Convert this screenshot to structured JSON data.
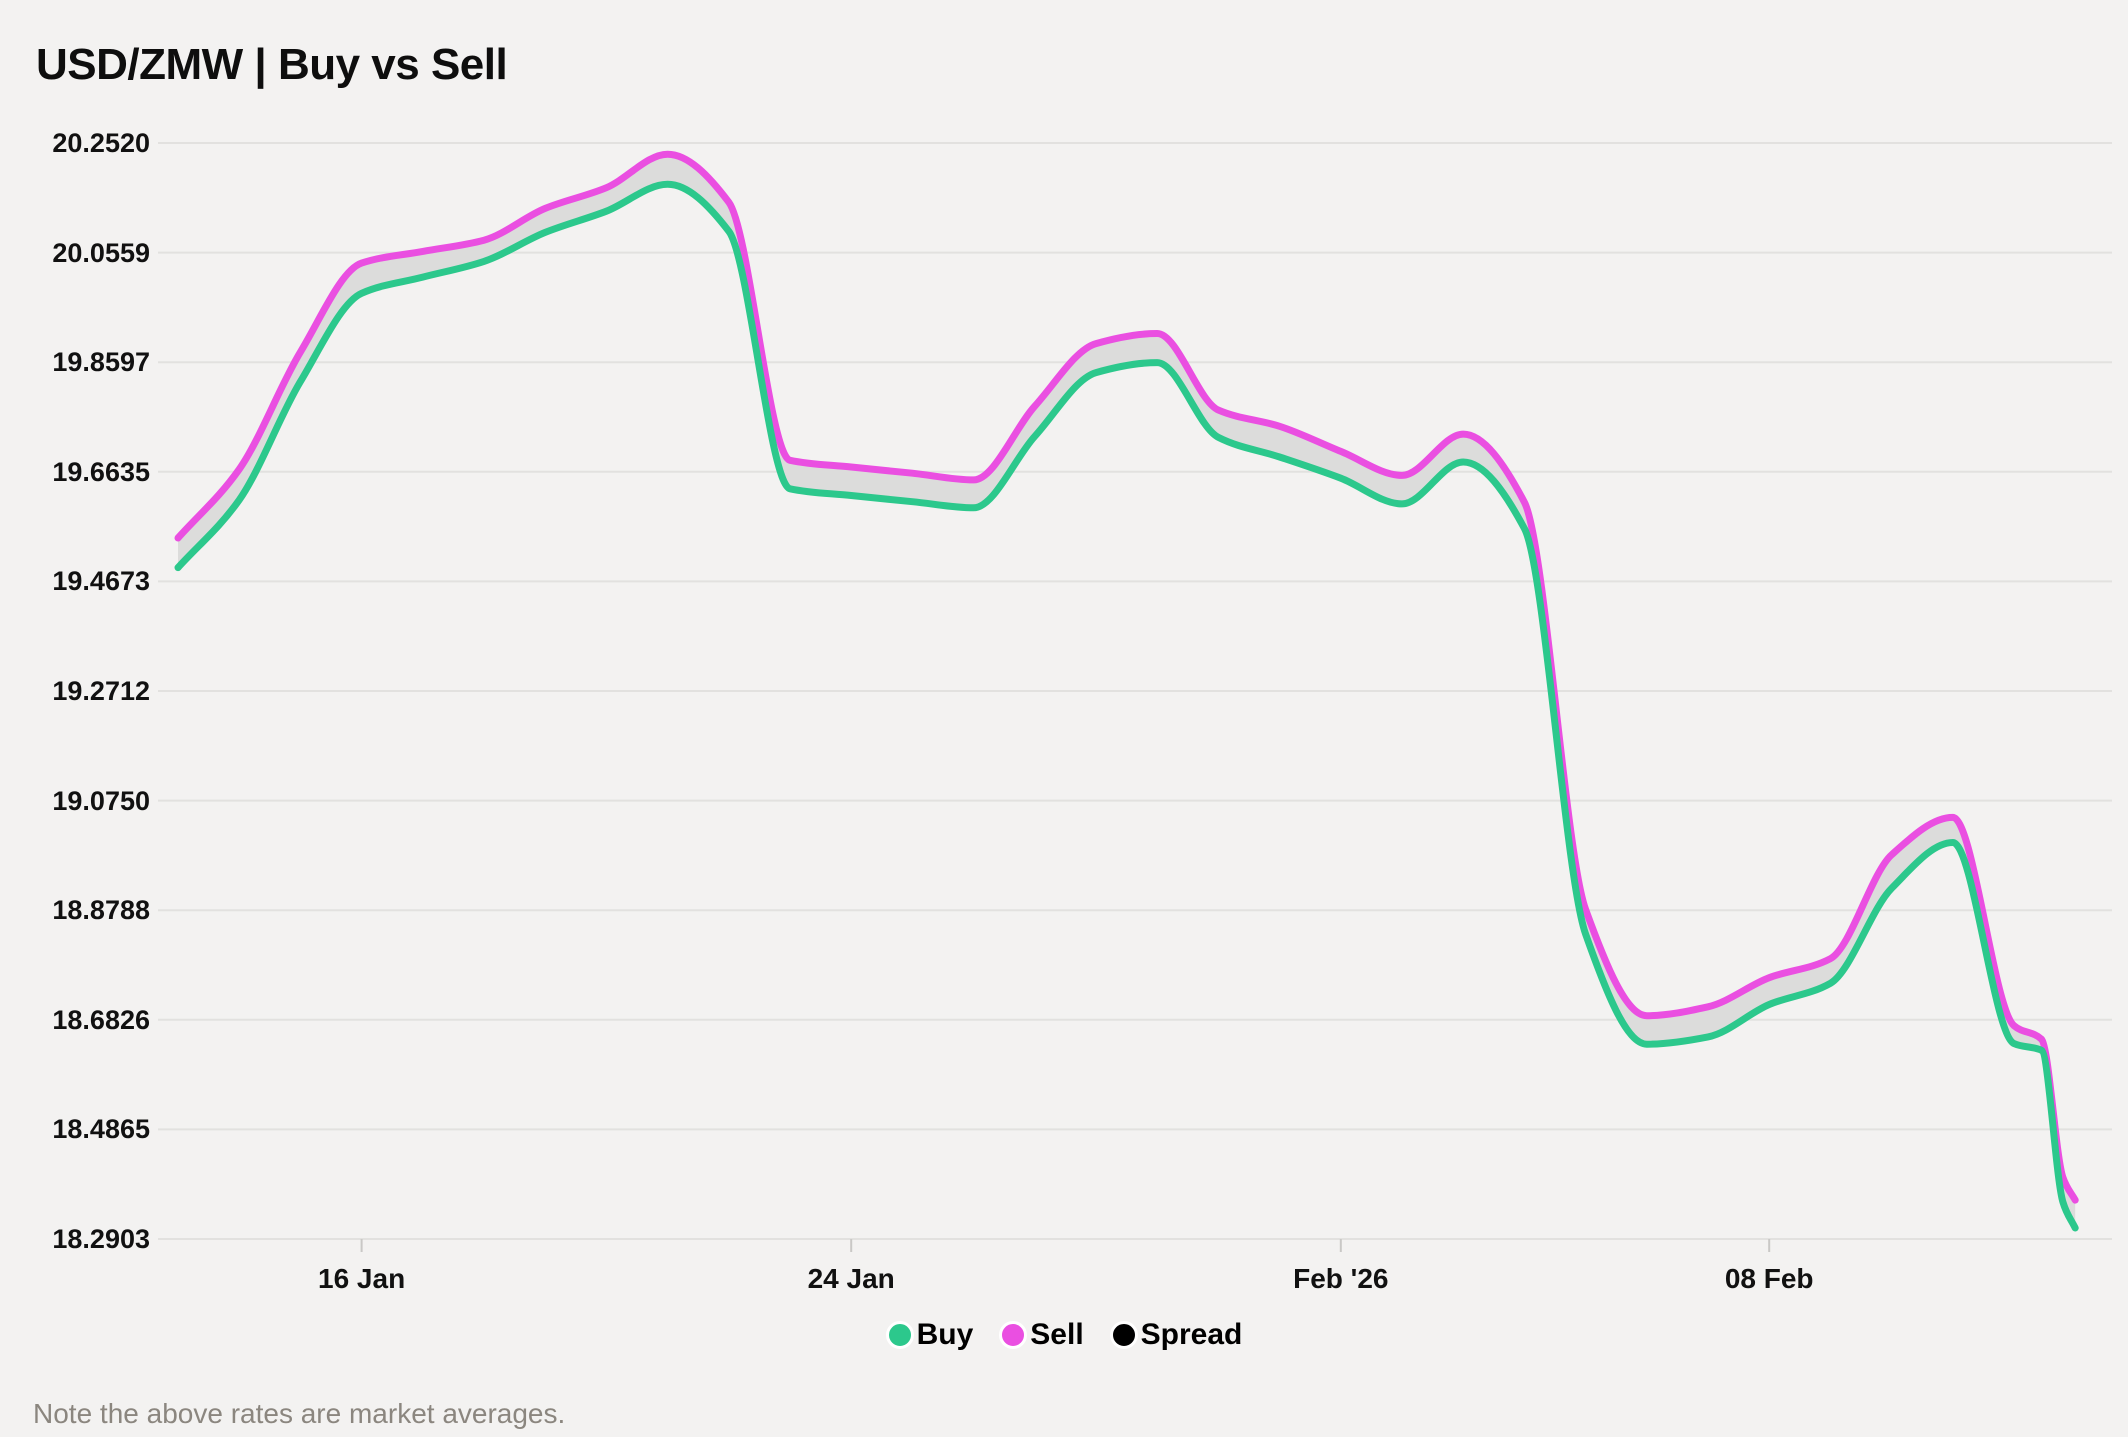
{
  "title": "USD/ZMW | Buy vs Sell",
  "note": "Note the above rates are market averages.",
  "colors": {
    "background": "#f3f2f1",
    "grid": "#e2e1df",
    "tick": "#c9c8c6",
    "band": "#dcdcdb",
    "buy": "#2cc88c",
    "sell": "#ea4fe1",
    "spread": "#000000",
    "title_text": "#0e0e0e",
    "axis_text": "#111111",
    "note_text": "#8b867f"
  },
  "legend": [
    {
      "label": "Buy",
      "color": "#2cc88c"
    },
    {
      "label": "Sell",
      "color": "#ea4fe1"
    },
    {
      "label": "Spread",
      "color": "#000000"
    }
  ],
  "chart_data": {
    "type": "line",
    "subtype": "two lines with shaded spread band between them (arearange)",
    "title": "USD/ZMW | Buy vs Sell",
    "xlabel": "",
    "ylabel": "",
    "grid": "horizontal gridlines on",
    "legend_position": "bottom center",
    "y_axis": {
      "min": 18.2903,
      "max": 20.252,
      "tick_labels": [
        "20.2520",
        "20.0559",
        "19.8597",
        "19.6635",
        "19.4673",
        "19.2712",
        "19.0750",
        "18.8788",
        "18.6826",
        "18.4865",
        "18.2903"
      ]
    },
    "x_axis": {
      "unit": "days, day 0 = 13 Jan, day 31 = 13 Feb",
      "ticks": [
        {
          "label": "16 Jan",
          "day": 3
        },
        {
          "label": "24 Jan",
          "day": 11
        },
        {
          "label": "Feb '26",
          "day": 19
        },
        {
          "label": "08 Feb",
          "day": 26
        }
      ]
    },
    "series": [
      {
        "name": "Sell",
        "color": "#ea4fe1",
        "points": [
          [
            0,
            19.545
          ],
          [
            1,
            19.668
          ],
          [
            2,
            19.878
          ],
          [
            3,
            20.037
          ],
          [
            4,
            20.058
          ],
          [
            5,
            20.078
          ],
          [
            6,
            20.135
          ],
          [
            7,
            20.172
          ],
          [
            8,
            20.232
          ],
          [
            9,
            20.146
          ],
          [
            10,
            19.684
          ],
          [
            11,
            19.672
          ],
          [
            12,
            19.661
          ],
          [
            13,
            19.649
          ],
          [
            14,
            19.781
          ],
          [
            15,
            19.893
          ],
          [
            16,
            19.911
          ],
          [
            17,
            19.774
          ],
          [
            18,
            19.745
          ],
          [
            19,
            19.7
          ],
          [
            20,
            19.657
          ],
          [
            21,
            19.731
          ],
          [
            22,
            19.609
          ],
          [
            23,
            18.88
          ],
          [
            24,
            18.69
          ],
          [
            25,
            18.706
          ],
          [
            26,
            18.758
          ],
          [
            27,
            18.792
          ],
          [
            28,
            18.978
          ],
          [
            29,
            19.045
          ],
          [
            30,
            18.672
          ],
          [
            30.45,
            18.648
          ],
          [
            30.8,
            18.4
          ],
          [
            31,
            18.36
          ]
        ]
      },
      {
        "name": "Buy",
        "color": "#2cc88c",
        "points": [
          [
            0,
            19.492
          ],
          [
            1,
            19.613
          ],
          [
            2,
            19.825
          ],
          [
            3,
            19.983
          ],
          [
            4,
            20.012
          ],
          [
            5,
            20.04
          ],
          [
            6,
            20.092
          ],
          [
            7,
            20.13
          ],
          [
            8,
            20.178
          ],
          [
            9,
            20.094
          ],
          [
            10,
            19.633
          ],
          [
            11,
            19.621
          ],
          [
            12,
            19.61
          ],
          [
            13,
            19.599
          ],
          [
            14,
            19.727
          ],
          [
            15,
            19.841
          ],
          [
            16,
            19.859
          ],
          [
            17,
            19.725
          ],
          [
            18,
            19.69
          ],
          [
            19,
            19.652
          ],
          [
            20,
            19.606
          ],
          [
            21,
            19.681
          ],
          [
            22,
            19.562
          ],
          [
            23,
            18.836
          ],
          [
            24,
            18.639
          ],
          [
            25,
            18.652
          ],
          [
            26,
            18.71
          ],
          [
            27,
            18.748
          ],
          [
            28,
            18.918
          ],
          [
            29,
            19.0
          ],
          [
            30,
            18.64
          ],
          [
            30.45,
            18.628
          ],
          [
            30.8,
            18.356
          ],
          [
            31,
            18.31
          ]
        ]
      },
      {
        "name": "Spread",
        "type": "band",
        "color": "#dcdcdb",
        "between": [
          "Sell",
          "Buy"
        ]
      }
    ]
  }
}
